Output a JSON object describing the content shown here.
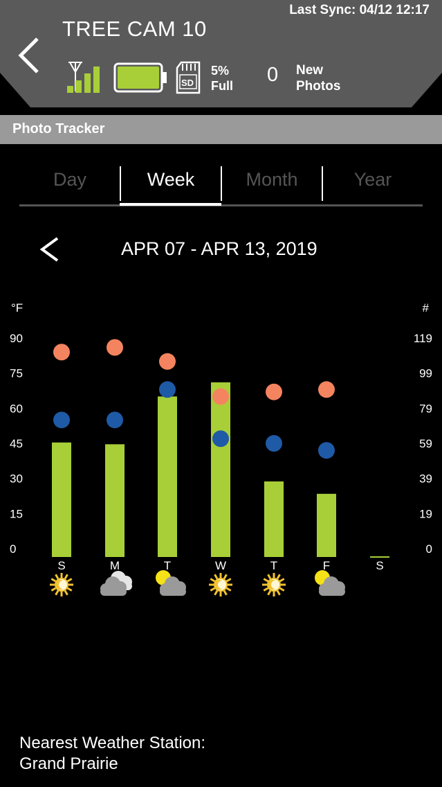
{
  "header": {
    "camera_name": "TREE CAM 10",
    "last_sync": "Last Sync: 04/12 12:17",
    "sd_percent": "5%",
    "sd_full": "Full",
    "new_photo_count": "0",
    "new_label_line1": "New",
    "new_label_line2": "Photos",
    "colors": {
      "accent": "#a8cf38",
      "header_bg": "#5a5a5a"
    }
  },
  "section_title": "Photo Tracker",
  "tabs": [
    {
      "label": "Day",
      "active": false
    },
    {
      "label": "Week",
      "active": true
    },
    {
      "label": "Month",
      "active": false
    },
    {
      "label": "Year",
      "active": false
    }
  ],
  "date_range": "APR 07 - APR 13, 2019",
  "chart_data": {
    "type": "bar",
    "title": "",
    "left_axis_label": "°F",
    "right_axis_label": "#",
    "left_ticks": [
      "90",
      "75",
      "60",
      "45",
      "30",
      "15",
      "0"
    ],
    "right_ticks": [
      "119",
      "99",
      "79",
      "59",
      "39",
      "19",
      "0"
    ],
    "left_range": [
      0,
      90
    ],
    "right_range": [
      0,
      119
    ],
    "categories": [
      "S",
      "M",
      "T",
      "W",
      "T",
      "F",
      "S"
    ],
    "series": [
      {
        "values": [
          60,
          59,
          86,
          94,
          38,
          31,
          0
        ],
        "color": "#a8cf38",
        "axis": "right"
      },
      {
        "values": [
          84,
          86,
          80,
          65,
          67,
          68,
          null
        ],
        "color": "#f4845f",
        "axis": "left"
      },
      {
        "values": [
          55,
          55,
          68,
          47,
          45,
          42,
          null
        ],
        "color": "#1f5aa6",
        "axis": "left"
      }
    ],
    "weather_icons": [
      "sun-icon",
      "cloudy-icon",
      "partly-cloudy-icon",
      "sun-icon",
      "sun-icon",
      "partly-cloudy-icon",
      ""
    ]
  },
  "weather_station": {
    "label": "Nearest Weather Station:",
    "name": "Grand Prairie"
  }
}
